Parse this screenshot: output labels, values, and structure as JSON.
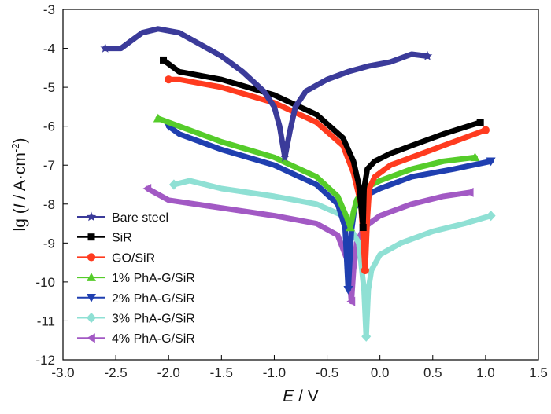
{
  "chart_data": {
    "type": "line",
    "xlabel": {
      "italic": "E",
      "rest": " / V"
    },
    "ylabel": {
      "prefix": "lg (",
      "italic": "I",
      "middle": " / A·cm",
      "sup": "-2",
      "suffix": ")"
    },
    "xlim": [
      -3.0,
      1.5
    ],
    "ylim": [
      -12,
      -3
    ],
    "x_ticks": [
      -3.0,
      -2.5,
      -2.0,
      -1.5,
      -1.0,
      -0.5,
      0.0,
      0.5,
      1.0,
      1.5
    ],
    "x_tick_labels": [
      "-3.0",
      "-2.5",
      "-2.0",
      "-1.5",
      "-1.0",
      "-0.5",
      "0.0",
      "0.5",
      "1.0",
      "1.5"
    ],
    "y_ticks": [
      -3,
      -4,
      -5,
      -6,
      -7,
      -8,
      -9,
      -10,
      -11,
      -12
    ],
    "y_tick_labels": [
      "-3",
      "-4",
      "-5",
      "-6",
      "-7",
      "-8",
      "-9",
      "-10",
      "-11",
      "-12"
    ],
    "legend_position": "lower-left",
    "series": [
      {
        "name": "Bare steel",
        "color": "#3b3b9a",
        "marker": "star",
        "x": [
          -2.6,
          -2.45,
          -2.35,
          -2.25,
          -2.1,
          -1.9,
          -1.7,
          -1.5,
          -1.3,
          -1.1,
          -1.0,
          -0.95,
          -0.9,
          -0.85,
          -0.8,
          -0.7,
          -0.5,
          -0.3,
          -0.1,
          0.1,
          0.3,
          0.45
        ],
        "y": [
          -4.0,
          -4.0,
          -3.8,
          -3.6,
          -3.5,
          -3.6,
          -3.9,
          -4.2,
          -4.6,
          -5.1,
          -5.5,
          -6.0,
          -6.8,
          -6.1,
          -5.5,
          -5.1,
          -4.8,
          -4.6,
          -4.45,
          -4.35,
          -4.15,
          -4.2
        ]
      },
      {
        "name": "SiR",
        "color": "#000000",
        "marker": "square",
        "x": [
          -2.05,
          -1.9,
          -1.5,
          -1.0,
          -0.6,
          -0.35,
          -0.25,
          -0.2,
          -0.17,
          -0.16,
          -0.15,
          -0.12,
          -0.05,
          0.1,
          0.3,
          0.6,
          0.95
        ],
        "y": [
          -4.3,
          -4.6,
          -4.8,
          -5.2,
          -5.7,
          -6.3,
          -6.9,
          -7.5,
          -8.3,
          -8.6,
          -7.6,
          -7.1,
          -6.9,
          -6.7,
          -6.5,
          -6.2,
          -5.9
        ]
      },
      {
        "name": "GO/SiR",
        "color": "#ff3b1f",
        "marker": "circle",
        "x": [
          -2.0,
          -1.9,
          -1.5,
          -1.0,
          -0.6,
          -0.35,
          -0.25,
          -0.18,
          -0.14,
          -0.12,
          -0.1,
          -0.05,
          0.1,
          0.3,
          0.6,
          1.0
        ],
        "y": [
          -4.8,
          -4.8,
          -5.0,
          -5.4,
          -5.9,
          -6.5,
          -7.2,
          -8.0,
          -9.7,
          -8.4,
          -7.6,
          -7.3,
          -7.0,
          -6.8,
          -6.5,
          -6.1
        ]
      },
      {
        "name": "1% PhA-G/SiR",
        "color": "#55cc2a",
        "marker": "triangle-up",
        "x": [
          -2.1,
          -1.9,
          -1.5,
          -1.0,
          -0.6,
          -0.4,
          -0.32,
          -0.28,
          -0.25,
          -0.22,
          -0.15,
          0.0,
          0.3,
          0.6,
          0.9
        ],
        "y": [
          -5.8,
          -6.0,
          -6.4,
          -6.8,
          -7.3,
          -7.8,
          -8.3,
          -8.6,
          -8.2,
          -7.9,
          -7.6,
          -7.4,
          -7.1,
          -6.9,
          -6.8
        ]
      },
      {
        "name": "2% PhA-G/SiR",
        "color": "#1f3fb0",
        "marker": "triangle-down",
        "x": [
          -2.0,
          -1.9,
          -1.5,
          -1.0,
          -0.6,
          -0.4,
          -0.33,
          -0.3,
          -0.27,
          -0.24,
          -0.15,
          0.0,
          0.3,
          0.7,
          1.05
        ],
        "y": [
          -6.0,
          -6.2,
          -6.6,
          -7.0,
          -7.5,
          -8.0,
          -8.6,
          -10.2,
          -8.7,
          -8.1,
          -7.8,
          -7.6,
          -7.3,
          -7.1,
          -6.9
        ]
      },
      {
        "name": "3% PhA-G/SiR",
        "color": "#8fe0d4",
        "marker": "diamond",
        "x": [
          -1.95,
          -1.8,
          -1.5,
          -1.0,
          -0.6,
          -0.35,
          -0.2,
          -0.15,
          -0.13,
          -0.11,
          -0.08,
          0.0,
          0.2,
          0.5,
          0.8,
          1.05
        ],
        "y": [
          -7.5,
          -7.4,
          -7.6,
          -7.8,
          -8.0,
          -8.3,
          -9.0,
          -10.2,
          -11.4,
          -10.2,
          -9.7,
          -9.3,
          -9.0,
          -8.7,
          -8.5,
          -8.3
        ]
      },
      {
        "name": "4% PhA-G/SiR",
        "color": "#a259c4",
        "marker": "triangle-left",
        "x": [
          -2.2,
          -2.0,
          -1.5,
          -1.0,
          -0.6,
          -0.4,
          -0.3,
          -0.27,
          -0.25,
          -0.22,
          -0.15,
          0.0,
          0.3,
          0.6,
          0.85
        ],
        "y": [
          -7.6,
          -7.9,
          -8.1,
          -8.3,
          -8.5,
          -8.8,
          -9.5,
          -10.5,
          -9.7,
          -9.0,
          -8.6,
          -8.3,
          -8.0,
          -7.8,
          -7.7
        ]
      }
    ]
  }
}
